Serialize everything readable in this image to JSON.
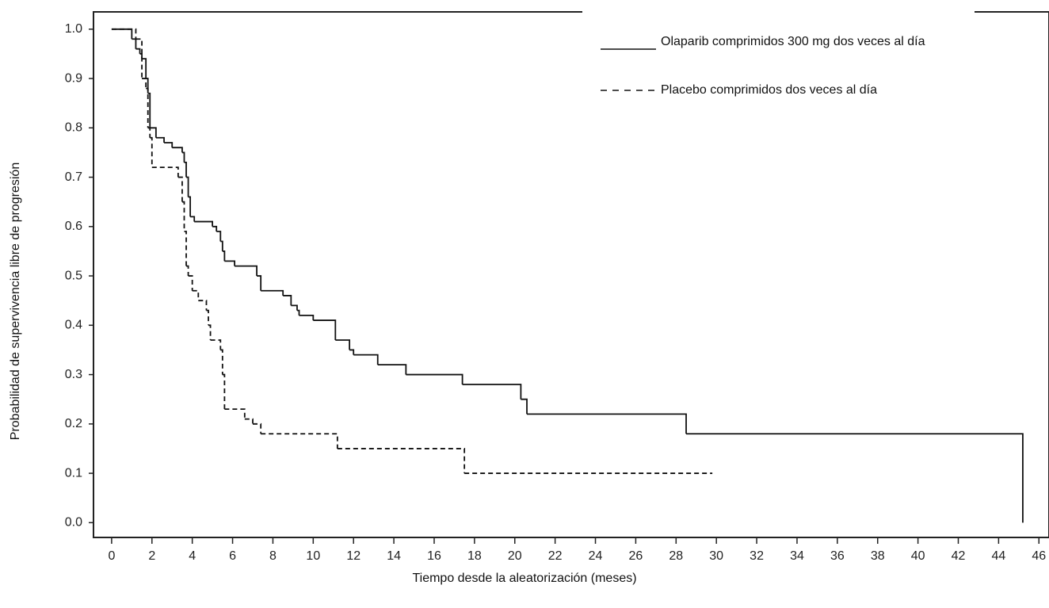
{
  "chart_data": {
    "type": "step",
    "x_label": "Tiempo desde la aleatorización (meses)",
    "y_label": "Probabilidad de supervivencia libre de progresión",
    "xlim": [
      -0.9,
      46.5
    ],
    "ylim": [
      -0.03,
      1.035
    ],
    "xticks": [
      0,
      2,
      4,
      6,
      8,
      10,
      12,
      14,
      16,
      18,
      20,
      22,
      24,
      26,
      28,
      30,
      32,
      34,
      36,
      38,
      40,
      42,
      44,
      46
    ],
    "yticks": [
      {
        "value": 0,
        "label": "0.0"
      },
      0.1,
      0.2,
      0.3,
      0.4,
      0.5,
      0.6,
      0.7,
      0.8,
      0.9,
      {
        "value": 1,
        "label": "1.0"
      }
    ],
    "series": [
      {
        "name": "Olaparib comprimidos 300 mg dos veces al día",
        "color": "#111111",
        "dash": "solid",
        "x": [
          0,
          1.0,
          1.2,
          1.4,
          1.5,
          1.7,
          1.8,
          1.9,
          2.2,
          2.6,
          3.0,
          3.5,
          3.6,
          3.7,
          3.8,
          3.9,
          4.1,
          5.0,
          5.2,
          5.4,
          5.5,
          5.6,
          6.1,
          7.2,
          7.4,
          8.5,
          8.9,
          9.2,
          9.3,
          10.0,
          11.1,
          11.8,
          12.0,
          13.2,
          14.6,
          17.4,
          20.3,
          20.6,
          28.5,
          45.2
        ],
        "values": [
          1.0,
          0.98,
          0.96,
          0.95,
          0.94,
          0.9,
          0.87,
          0.8,
          0.78,
          0.77,
          0.76,
          0.75,
          0.73,
          0.7,
          0.66,
          0.62,
          0.61,
          0.6,
          0.59,
          0.57,
          0.55,
          0.53,
          0.52,
          0.5,
          0.47,
          0.46,
          0.44,
          0.43,
          0.42,
          0.41,
          0.37,
          0.35,
          0.34,
          0.32,
          0.3,
          0.28,
          0.25,
          0.22,
          0.18,
          0.0
        ]
      },
      {
        "name": "Placebo comprimidos dos veces al día",
        "color": "#111111",
        "dash": "dashed",
        "x": [
          0,
          1.2,
          1.5,
          1.7,
          1.8,
          1.9,
          2.0,
          3.3,
          3.5,
          3.6,
          3.7,
          3.8,
          4.0,
          4.3,
          4.7,
          4.8,
          4.9,
          5.4,
          5.5,
          5.6,
          6.6,
          7.0,
          7.4,
          11.2,
          17.5,
          29.8
        ],
        "values": [
          1.0,
          0.98,
          0.9,
          0.88,
          0.8,
          0.78,
          0.72,
          0.7,
          0.65,
          0.59,
          0.52,
          0.5,
          0.47,
          0.45,
          0.43,
          0.4,
          0.37,
          0.35,
          0.3,
          0.23,
          0.21,
          0.2,
          0.18,
          0.15,
          0.1,
          0.1
        ]
      }
    ]
  }
}
